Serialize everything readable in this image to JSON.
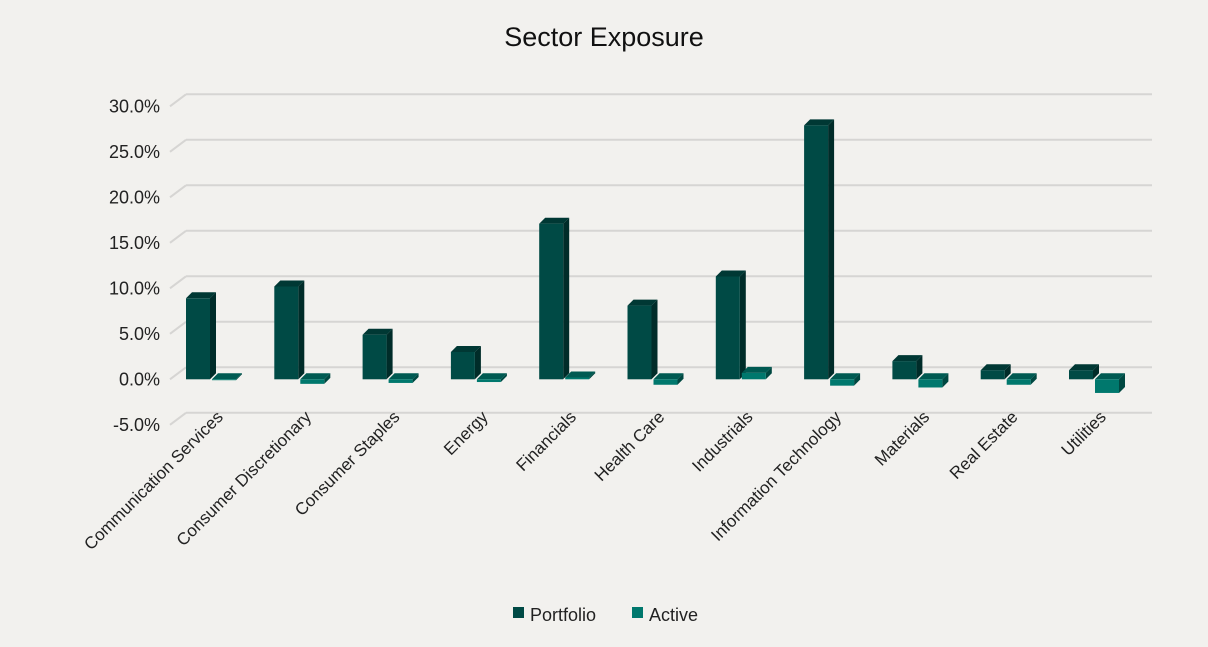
{
  "chart_data": {
    "type": "bar",
    "title": "Sector Exposure",
    "categories": [
      "Communication Services",
      "Consumer Discretionary",
      "Consumer Staples",
      "Energy",
      "Financials",
      "Health Care",
      "Industrials",
      "Information Technology",
      "Materials",
      "Real Estate",
      "Utilities"
    ],
    "series": [
      {
        "name": "Portfolio",
        "color": "#004a45",
        "values": [
          8.9,
          10.2,
          4.9,
          3.0,
          17.1,
          8.1,
          11.3,
          27.9,
          2.0,
          1.0,
          1.0
        ]
      },
      {
        "name": "Active",
        "color": "#00786d",
        "values": [
          -0.1,
          -0.5,
          -0.4,
          -0.3,
          0.2,
          -0.6,
          0.7,
          -0.7,
          -0.9,
          -0.6,
          -1.5
        ]
      }
    ],
    "yticks": [
      "-5.0%",
      "0.0%",
      "5.0%",
      "10.0%",
      "15.0%",
      "20.0%",
      "25.0%",
      "30.0%"
    ],
    "ylim": [
      -5,
      30
    ],
    "grid": true,
    "legend": "bottom",
    "style": "3d-clustered-column"
  }
}
